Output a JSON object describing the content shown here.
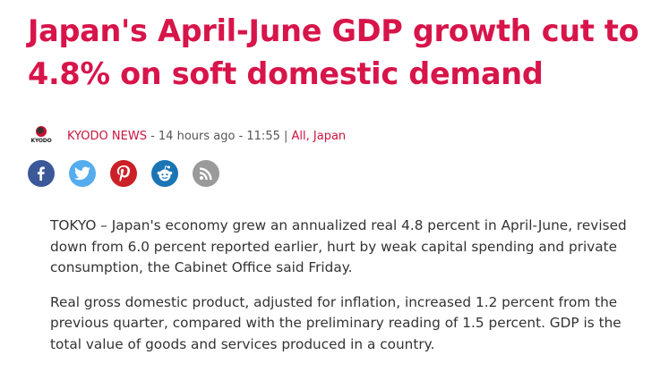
{
  "article": {
    "headline": "Japan's April-June GDP growth cut to 4.8% on soft domestic demand",
    "byline": {
      "logo_text": "KYODO",
      "source": "KYODO NEWS",
      "time_text": " - 14 hours ago - 11:55 ",
      "separator": "|",
      "categories": " All, Japan"
    },
    "share": {
      "facebook_color": "#3b5998",
      "twitter_color": "#55acee",
      "pinterest_color": "#cb2027",
      "reddit_color": "#1a75b5",
      "rss_color": "#9a9a9a"
    },
    "paragraphs": [
      "TOKYO – Japan's economy grew an annualized real 4.8 percent in April-June, revised down from 6.0 percent reported earlier, hurt by weak capital spending and private consumption, the Cabinet Office said Friday.",
      "Real gross domestic product, adjusted for inflation, increased 1.2 percent from the previous quarter, compared with the preliminary reading of 1.5 percent. GDP is the total value of goods and services produced in a country."
    ]
  }
}
